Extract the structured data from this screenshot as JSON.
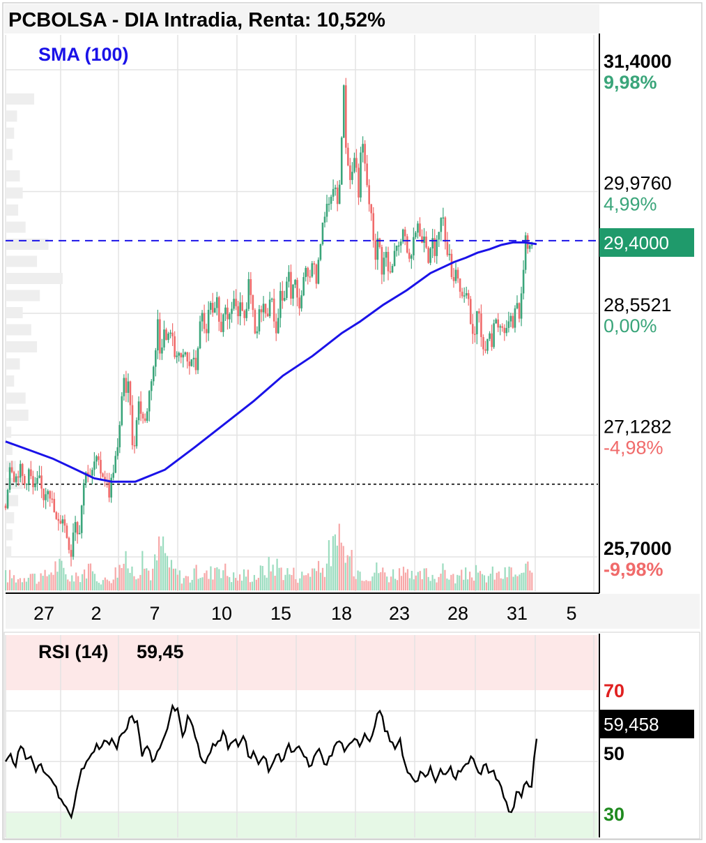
{
  "header": {
    "title": "PCBOLSA - DIA Intradia, Renta: 10,52%",
    "indicator_label": "SMA (100)"
  },
  "colors": {
    "up": "#3aa57a",
    "down": "#f06a6a",
    "sma": "#1a12e8",
    "last_price_bg": "#1f9a6b",
    "rsi_overbought_zone": "#fde8e8",
    "rsi_oversold_zone": "#e6f8e6",
    "label_70": "#e02020",
    "label_30": "#1f8a1f",
    "grid": "#e3e3e3"
  },
  "chart_data": [
    {
      "type": "candlestick",
      "title": "PCBOLSA - DIA Intradia, Renta: 10,52%",
      "ylim": [
        25.7,
        31.4
      ],
      "y_ticks": [
        {
          "value": "31,4000",
          "pct": "9,98%",
          "bold": true
        },
        {
          "value": "29,9760",
          "pct": "4,99%",
          "bold": false
        },
        {
          "value": "28,5521",
          "pct": "0,00%",
          "bold": false
        },
        {
          "value": "27,1282",
          "pct": "-4,98%",
          "bold": false
        },
        {
          "value": "25,7000",
          "pct": "-9,98%",
          "bold": true
        }
      ],
      "x_tick_labels": [
        "27",
        "2",
        "7",
        "10",
        "15",
        "18",
        "23",
        "28",
        "31",
        "5"
      ],
      "last_price": {
        "value": 29.4,
        "label": "29,4000"
      },
      "reference_price": 26.55,
      "sma_label": "SMA (100)",
      "sma_path": [
        [
          0,
          27.05
        ],
        [
          20,
          26.95
        ],
        [
          40,
          26.85
        ],
        [
          60,
          26.72
        ],
        [
          75,
          26.62
        ],
        [
          90,
          26.58
        ],
        [
          110,
          26.58
        ],
        [
          135,
          26.72
        ],
        [
          160,
          26.98
        ],
        [
          185,
          27.25
        ],
        [
          210,
          27.52
        ],
        [
          235,
          27.82
        ],
        [
          260,
          28.05
        ],
        [
          285,
          28.32
        ],
        [
          300,
          28.45
        ],
        [
          320,
          28.65
        ],
        [
          340,
          28.82
        ],
        [
          360,
          29.02
        ],
        [
          380,
          29.15
        ],
        [
          390,
          29.2
        ],
        [
          400,
          29.26
        ],
        [
          410,
          29.3
        ],
        [
          420,
          29.35
        ],
        [
          430,
          29.38
        ],
        [
          440,
          29.38
        ],
        [
          450,
          29.36
        ]
      ],
      "price_path": [
        [
          0,
          26.3
        ],
        [
          4,
          26.85
        ],
        [
          8,
          26.6
        ],
        [
          12,
          26.75
        ],
        [
          16,
          26.55
        ],
        [
          20,
          26.72
        ],
        [
          24,
          26.45
        ],
        [
          28,
          26.62
        ],
        [
          32,
          26.4
        ],
        [
          36,
          26.55
        ],
        [
          40,
          26.3
        ],
        [
          44,
          26.05
        ],
        [
          48,
          26.2
        ],
        [
          52,
          25.95
        ],
        [
          56,
          25.72
        ],
        [
          58,
          26.2
        ],
        [
          62,
          25.95
        ],
        [
          65,
          26.4
        ],
        [
          68,
          26.75
        ],
        [
          72,
          26.6
        ],
        [
          76,
          26.85
        ],
        [
          80,
          26.72
        ],
        [
          84,
          26.65
        ],
        [
          88,
          26.45
        ],
        [
          92,
          26.8
        ],
        [
          96,
          27.0
        ],
        [
          98,
          27.55
        ],
        [
          100,
          27.85
        ],
        [
          102,
          27.55
        ],
        [
          105,
          27.75
        ],
        [
          108,
          26.8
        ],
        [
          112,
          27.55
        ],
        [
          115,
          27.4
        ],
        [
          118,
          27.25
        ],
        [
          121,
          27.55
        ],
        [
          124,
          27.85
        ],
        [
          127,
          28.05
        ],
        [
          129,
          28.5
        ],
        [
          131,
          28.1
        ],
        [
          134,
          28.35
        ],
        [
          137,
          28.2
        ],
        [
          140,
          28.4
        ],
        [
          143,
          28.05
        ],
        [
          146,
          28.15
        ],
        [
          149,
          27.95
        ],
        [
          152,
          28.1
        ],
        [
          155,
          27.9
        ],
        [
          158,
          28.05
        ],
        [
          161,
          27.88
        ],
        [
          164,
          28.35
        ],
        [
          167,
          28.55
        ],
        [
          170,
          28.25
        ],
        [
          173,
          28.7
        ],
        [
          176,
          28.45
        ],
        [
          179,
          28.68
        ],
        [
          182,
          28.3
        ],
        [
          185,
          28.65
        ],
        [
          188,
          28.4
        ],
        [
          191,
          28.6
        ],
        [
          194,
          28.75
        ],
        [
          197,
          28.45
        ],
        [
          200,
          28.7
        ],
        [
          203,
          28.35
        ],
        [
          206,
          28.9
        ],
        [
          209,
          28.6
        ],
        [
          212,
          28.2
        ],
        [
          215,
          28.55
        ],
        [
          218,
          28.7
        ],
        [
          221,
          28.45
        ],
        [
          224,
          28.8
        ],
        [
          227,
          28.55
        ],
        [
          230,
          28.3
        ],
        [
          233,
          28.85
        ],
        [
          236,
          28.6
        ],
        [
          239,
          29.1
        ],
        [
          242,
          28.75
        ],
        [
          245,
          28.95
        ],
        [
          248,
          28.6
        ],
        [
          251,
          28.8
        ],
        [
          254,
          29.05
        ],
        [
          257,
          28.85
        ],
        [
          260,
          29.25
        ],
        [
          263,
          28.9
        ],
        [
          266,
          29.2
        ],
        [
          268,
          29.7
        ],
        [
          270,
          29.55
        ],
        [
          272,
          29.9
        ],
        [
          275,
          29.75
        ],
        [
          278,
          30.1
        ],
        [
          281,
          29.8
        ],
        [
          284,
          30.2
        ],
        [
          286,
          31.4
        ],
        [
          288,
          30.6
        ],
        [
          290,
          30.3
        ],
        [
          293,
          30.1
        ],
        [
          296,
          30.45
        ],
        [
          299,
          29.95
        ],
        [
          302,
          30.6
        ],
        [
          305,
          30.2
        ],
        [
          308,
          29.85
        ],
        [
          311,
          29.55
        ],
        [
          313,
          29.2
        ],
        [
          316,
          29.45
        ],
        [
          319,
          29.05
        ],
        [
          322,
          29.3
        ],
        [
          325,
          28.95
        ],
        [
          328,
          29.1
        ],
        [
          331,
          29.4
        ],
        [
          334,
          29.25
        ],
        [
          337,
          29.55
        ],
        [
          340,
          29.35
        ],
        [
          343,
          29.05
        ],
        [
          346,
          29.4
        ],
        [
          349,
          29.65
        ],
        [
          352,
          29.35
        ],
        [
          355,
          29.55
        ],
        [
          358,
          29.2
        ],
        [
          361,
          29.45
        ],
        [
          364,
          29.15
        ],
        [
          367,
          29.55
        ],
        [
          370,
          29.7
        ],
        [
          373,
          29.4
        ],
        [
          376,
          29.2
        ],
        [
          379,
          28.95
        ],
        [
          382,
          29.1
        ],
        [
          385,
          28.85
        ],
        [
          388,
          28.65
        ],
        [
          391,
          28.8
        ],
        [
          394,
          28.45
        ],
        [
          397,
          28.25
        ],
        [
          400,
          28.6
        ],
        [
          403,
          28.3
        ],
        [
          406,
          28.05
        ],
        [
          409,
          28.4
        ],
        [
          412,
          28.2
        ],
        [
          415,
          28.55
        ],
        [
          418,
          28.35
        ],
        [
          421,
          28.45
        ],
        [
          424,
          28.25
        ],
        [
          427,
          28.6
        ],
        [
          430,
          28.45
        ],
        [
          433,
          28.7
        ],
        [
          436,
          28.5
        ],
        [
          439,
          29.15
        ],
        [
          441,
          29.55
        ],
        [
          443,
          29.3
        ],
        [
          446,
          29.4
        ]
      ],
      "volume_path": [
        [
          4,
          0.3
        ],
        [
          12,
          0.25
        ],
        [
          20,
          0.4
        ],
        [
          28,
          0.2
        ],
        [
          36,
          0.35
        ],
        [
          44,
          0.55
        ],
        [
          52,
          0.3
        ],
        [
          60,
          0.25
        ],
        [
          68,
          0.45
        ],
        [
          76,
          0.3
        ],
        [
          84,
          0.2
        ],
        [
          92,
          0.35
        ],
        [
          100,
          0.6
        ],
        [
          108,
          0.4
        ],
        [
          116,
          0.55
        ],
        [
          124,
          0.35
        ],
        [
          132,
          1.0
        ],
        [
          140,
          0.45
        ],
        [
          148,
          0.3
        ],
        [
          156,
          0.25
        ],
        [
          164,
          0.4
        ],
        [
          172,
          0.3
        ],
        [
          180,
          0.6
        ],
        [
          188,
          0.35
        ],
        [
          196,
          0.25
        ],
        [
          204,
          0.35
        ],
        [
          212,
          0.3
        ],
        [
          220,
          0.45
        ],
        [
          228,
          0.55
        ],
        [
          236,
          0.4
        ],
        [
          244,
          0.35
        ],
        [
          252,
          0.3
        ],
        [
          260,
          0.45
        ],
        [
          268,
          0.4
        ],
        [
          276,
          0.85
        ],
        [
          284,
          0.95
        ],
        [
          292,
          0.6
        ],
        [
          300,
          0.4
        ],
        [
          308,
          0.35
        ],
        [
          316,
          0.45
        ],
        [
          324,
          0.3
        ],
        [
          332,
          0.4
        ],
        [
          340,
          0.3
        ],
        [
          348,
          0.25
        ],
        [
          356,
          0.35
        ],
        [
          364,
          0.3
        ],
        [
          372,
          0.4
        ],
        [
          380,
          0.25
        ],
        [
          388,
          0.3
        ],
        [
          396,
          0.4
        ],
        [
          404,
          0.25
        ],
        [
          412,
          0.35
        ],
        [
          420,
          0.3
        ],
        [
          428,
          0.4
        ],
        [
          436,
          0.25
        ],
        [
          444,
          0.45
        ]
      ],
      "profile_levels": [
        [
          31.05,
          0.5
        ],
        [
          30.85,
          0.2
        ],
        [
          30.65,
          0.15
        ],
        [
          30.4,
          0.12
        ],
        [
          30.15,
          0.25
        ],
        [
          29.95,
          0.3
        ],
        [
          29.75,
          0.22
        ],
        [
          29.55,
          0.35
        ],
        [
          29.35,
          0.75
        ],
        [
          29.15,
          0.55
        ],
        [
          28.95,
          1.0
        ],
        [
          28.75,
          0.6
        ],
        [
          28.55,
          0.3
        ],
        [
          28.35,
          0.45
        ],
        [
          28.15,
          0.55
        ],
        [
          27.95,
          0.25
        ],
        [
          27.75,
          0.15
        ],
        [
          27.55,
          0.35
        ],
        [
          27.35,
          0.4
        ],
        [
          27.15,
          0.1
        ],
        [
          26.95,
          0.12
        ],
        [
          26.75,
          0.18
        ],
        [
          26.55,
          0.3
        ],
        [
          26.35,
          0.22
        ],
        [
          26.15,
          0.15
        ],
        [
          25.95,
          0.12
        ],
        [
          25.75,
          0.1
        ]
      ]
    },
    {
      "type": "line",
      "title": "RSI (14)",
      "title_value": "59,45",
      "ylim": [
        20,
        100
      ],
      "y_ticks": [
        "70",
        "50",
        "30"
      ],
      "last_value_label": "59,458",
      "values": [
        50,
        53,
        48,
        56,
        51,
        52,
        46,
        49,
        45,
        43,
        40,
        35,
        32,
        28,
        38,
        47,
        50,
        53,
        57,
        56,
        58,
        59,
        55,
        61,
        63,
        68,
        66,
        52,
        56,
        50,
        54,
        58,
        63,
        72,
        71,
        60,
        68,
        64,
        57,
        50,
        52,
        57,
        58,
        62,
        55,
        58,
        56,
        60,
        52,
        54,
        49,
        52,
        46,
        50,
        53,
        51,
        57,
        54,
        56,
        52,
        48,
        52,
        55,
        49,
        52,
        56,
        58,
        54,
        57,
        59,
        56,
        61,
        58,
        64,
        70,
        62,
        58,
        55,
        59,
        49,
        45,
        42,
        46,
        44,
        48,
        42,
        47,
        45,
        48,
        43,
        46,
        49,
        52,
        48,
        45,
        49,
        46,
        43,
        40,
        34,
        30,
        38,
        36,
        42,
        40,
        59
      ]
    }
  ]
}
